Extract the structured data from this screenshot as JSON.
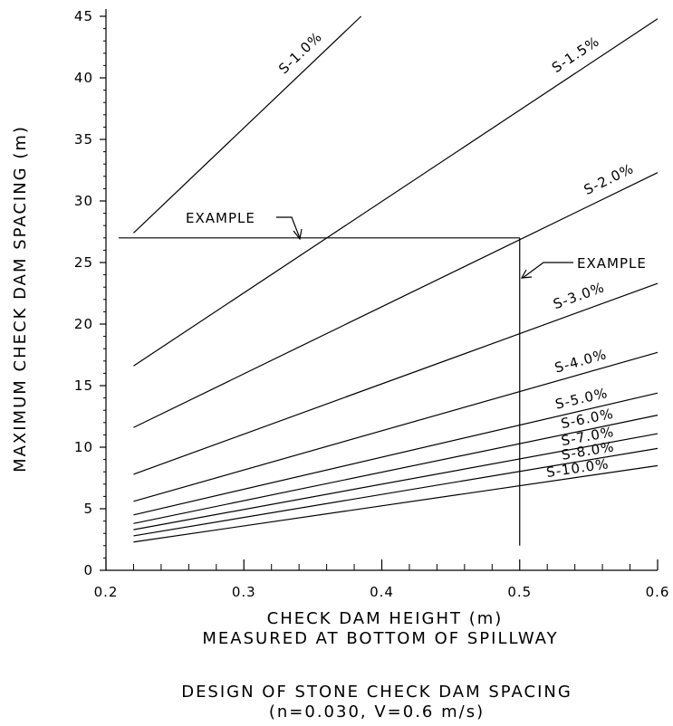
{
  "chart_data": {
    "type": "line",
    "title": "DESIGN OF STONE CHECK DAM SPACING",
    "subtitle": "(n=0.030, V=0.6 m/s)",
    "xlabel": [
      "CHECK DAM HEIGHT (m)",
      "MEASURED AT BOTTOM OF SPILLWAY"
    ],
    "ylabel": "MAXIMUM CHECK DAM SPACING (m)",
    "xlim": [
      0.2,
      0.6
    ],
    "ylim": [
      0,
      45
    ],
    "x_ticks": [
      0.2,
      0.3,
      0.4,
      0.5,
      0.6
    ],
    "x_tick_labels": [
      "0.2",
      "0.3",
      "0.4",
      "0.5",
      "0.6"
    ],
    "y_ticks": [
      0,
      5,
      10,
      15,
      20,
      25,
      30,
      35,
      40,
      45
    ],
    "y_tick_labels": [
      "0",
      "5",
      "10",
      "15",
      "20",
      "25",
      "30",
      "35",
      "40",
      "45"
    ],
    "grid": false,
    "series": [
      {
        "name": "S-1.0%",
        "x": [
          0.22,
          0.385
        ],
        "y": [
          27.4,
          45.0
        ]
      },
      {
        "name": "S-1.5%",
        "x": [
          0.22,
          0.6
        ],
        "y": [
          16.6,
          44.8
        ]
      },
      {
        "name": "S-2.0%",
        "x": [
          0.22,
          0.6
        ],
        "y": [
          11.6,
          32.3
        ]
      },
      {
        "name": "S-3.0%",
        "x": [
          0.22,
          0.6
        ],
        "y": [
          7.8,
          23.3
        ]
      },
      {
        "name": "S-4.0%",
        "x": [
          0.22,
          0.6
        ],
        "y": [
          5.6,
          17.7
        ]
      },
      {
        "name": "S-5.0%",
        "x": [
          0.22,
          0.6
        ],
        "y": [
          4.5,
          14.4
        ]
      },
      {
        "name": "S-6.0%",
        "x": [
          0.22,
          0.6
        ],
        "y": [
          3.8,
          12.6
        ]
      },
      {
        "name": "S-7.0%",
        "x": [
          0.22,
          0.6
        ],
        "y": [
          3.3,
          11.1
        ]
      },
      {
        "name": "S-8.0%",
        "x": [
          0.22,
          0.6
        ],
        "y": [
          2.8,
          9.9
        ]
      },
      {
        "name": "S-10.0%",
        "x": [
          0.22,
          0.6
        ],
        "y": [
          2.3,
          8.5
        ]
      }
    ],
    "example": {
      "label": "EXAMPLE",
      "height": 0.5,
      "spacing": 27
    }
  }
}
